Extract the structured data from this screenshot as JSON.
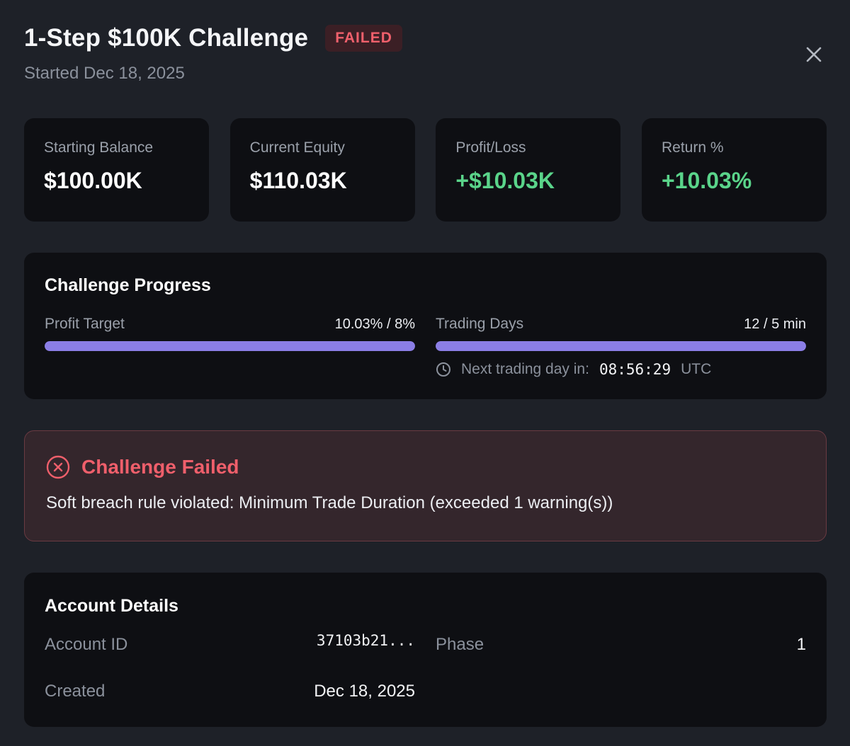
{
  "header": {
    "title": "1-Step $100K Challenge",
    "status_badge": "FAILED",
    "subtitle": "Started Dec 18, 2025",
    "close_icon": "close-icon"
  },
  "stats": [
    {
      "label": "Starting Balance",
      "value": "$100.00K",
      "tone": "neutral"
    },
    {
      "label": "Current Equity",
      "value": "$110.03K",
      "tone": "neutral"
    },
    {
      "label": "Profit/Loss",
      "value": "+$10.03K",
      "tone": "positive"
    },
    {
      "label": "Return %",
      "value": "+10.03%",
      "tone": "positive"
    }
  ],
  "progress": {
    "title": "Challenge Progress",
    "profit_target": {
      "label": "Profit Target",
      "value": "10.03% / 8%",
      "fill_percent": 100
    },
    "trading_days": {
      "label": "Trading Days",
      "value": "12 / 5 min",
      "fill_percent": 100
    },
    "next_day": {
      "label": "Next trading day in:",
      "time": "08:56:29",
      "timezone": "UTC",
      "icon": "clock-icon"
    }
  },
  "failure": {
    "icon": "x-circle-icon",
    "title": "Challenge Failed",
    "message": "Soft breach rule violated: Minimum Trade Duration (exceeded 1 warning(s))"
  },
  "details": {
    "title": "Account Details",
    "account_id": {
      "label": "Account ID",
      "value": "37103b21..."
    },
    "phase": {
      "label": "Phase",
      "value": "1"
    },
    "created": {
      "label": "Created",
      "value": "Dec 18, 2025"
    }
  },
  "colors": {
    "background": "#1e2128",
    "card": "#0e0f13",
    "accent": "#8b7ee6",
    "positive": "#5ad48a",
    "danger": "#ef5f6b"
  }
}
